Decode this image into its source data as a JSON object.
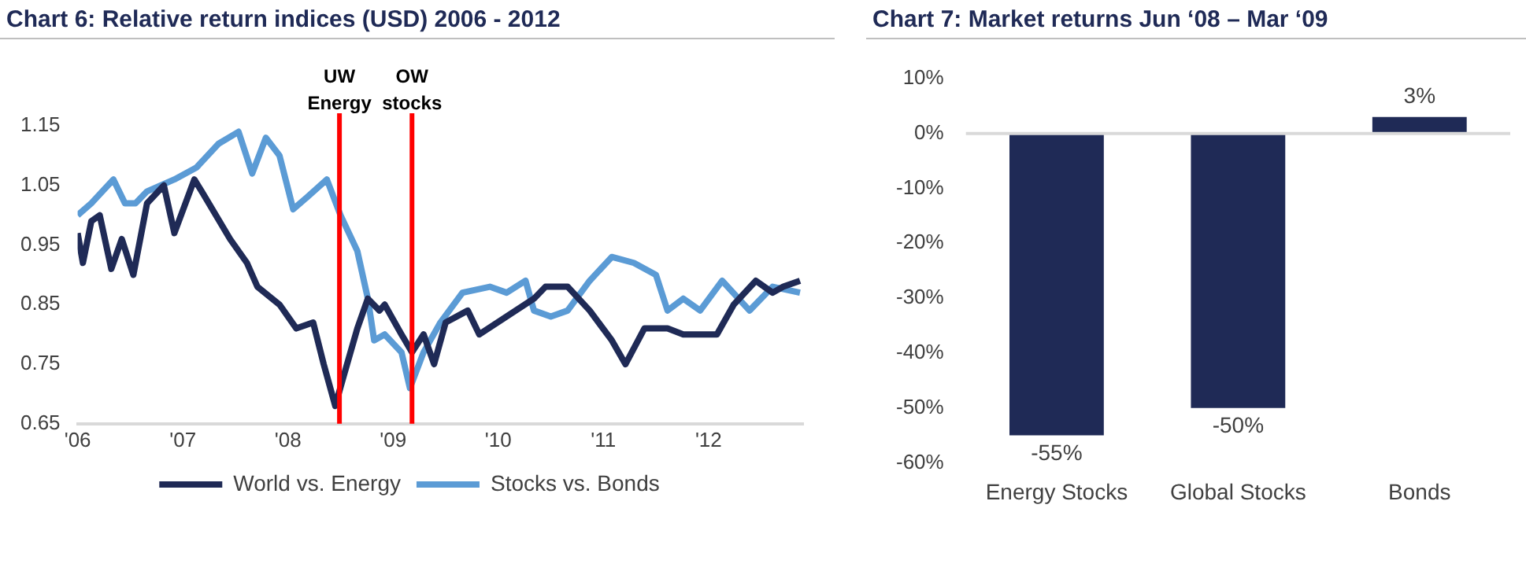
{
  "chart_data": [
    {
      "type": "line",
      "title": "Chart 6: Relative return indices (USD) 2006 - 2012",
      "legend": "bottom",
      "grid": false,
      "marker": "none",
      "line_style": "solid",
      "xlim": [
        2006,
        2012.9
      ],
      "xticks": [
        {
          "value": 2006,
          "label": "'06"
        },
        {
          "value": 2007,
          "label": "'07"
        },
        {
          "value": 2008,
          "label": "'08"
        },
        {
          "value": 2009,
          "label": "'09"
        },
        {
          "value": 2010,
          "label": "'10"
        },
        {
          "value": 2011,
          "label": "'11"
        },
        {
          "value": 2012,
          "label": "'12"
        }
      ],
      "ylim": [
        0.65,
        1.15
      ],
      "yticks": [
        0.65,
        0.75,
        0.85,
        0.95,
        1.05,
        1.15
      ],
      "ref_lines": [
        {
          "axis": "x",
          "value": 2008.49,
          "label": "UW Energy",
          "color": "#ff0000"
        },
        {
          "axis": "x",
          "value": 2009.18,
          "label": "OW stocks",
          "color": "#ff0000"
        }
      ],
      "series": [
        {
          "name": "World vs. Energy",
          "color": "#1f2a56",
          "x": [
            2006.0,
            2006.05,
            2006.13,
            2006.21,
            2006.32,
            2006.42,
            2006.53,
            2006.66,
            2006.82,
            2006.92,
            2007.11,
            2007.18,
            2007.45,
            2007.61,
            2007.71,
            2007.92,
            2008.08,
            2008.24,
            2008.34,
            2008.45,
            2008.53,
            2008.66,
            2008.76,
            2008.87,
            2008.92,
            2009.08,
            2009.18,
            2009.29,
            2009.39,
            2009.5,
            2009.71,
            2009.82,
            2010.08,
            2010.34,
            2010.45,
            2010.66,
            2010.87,
            2011.08,
            2011.21,
            2011.39,
            2011.61,
            2011.76,
            2011.92,
            2012.08,
            2012.24,
            2012.45,
            2012.61,
            2012.71,
            2012.87
          ],
          "values": [
            0.97,
            0.92,
            0.99,
            1.0,
            0.91,
            0.96,
            0.9,
            1.02,
            1.05,
            0.97,
            1.06,
            1.04,
            0.96,
            0.92,
            0.88,
            0.85,
            0.81,
            0.82,
            0.75,
            0.68,
            0.73,
            0.81,
            0.86,
            0.84,
            0.85,
            0.8,
            0.77,
            0.8,
            0.75,
            0.82,
            0.84,
            0.8,
            0.83,
            0.86,
            0.88,
            0.88,
            0.84,
            0.79,
            0.75,
            0.81,
            0.81,
            0.8,
            0.8,
            0.8,
            0.85,
            0.89,
            0.87,
            0.88,
            0.89
          ]
        },
        {
          "name": "Stocks vs. Bonds",
          "color": "#5b9bd5",
          "x": [
            2006.0,
            2006.13,
            2006.34,
            2006.45,
            2006.55,
            2006.66,
            2006.92,
            2007.13,
            2007.34,
            2007.53,
            2007.66,
            2007.79,
            2007.92,
            2008.05,
            2008.18,
            2008.37,
            2008.5,
            2008.66,
            2008.76,
            2008.82,
            2008.92,
            2009.08,
            2009.16,
            2009.29,
            2009.45,
            2009.66,
            2009.92,
            2010.08,
            2010.26,
            2010.34,
            2010.5,
            2010.66,
            2010.87,
            2011.08,
            2011.29,
            2011.5,
            2011.61,
            2011.76,
            2011.92,
            2012.13,
            2012.39,
            2012.61,
            2012.87
          ],
          "values": [
            1.0,
            1.02,
            1.06,
            1.02,
            1.02,
            1.04,
            1.06,
            1.08,
            1.12,
            1.14,
            1.07,
            1.13,
            1.1,
            1.01,
            1.03,
            1.06,
            1.0,
            0.94,
            0.86,
            0.79,
            0.8,
            0.77,
            0.71,
            0.77,
            0.82,
            0.87,
            0.88,
            0.87,
            0.89,
            0.84,
            0.83,
            0.84,
            0.89,
            0.93,
            0.92,
            0.9,
            0.84,
            0.86,
            0.84,
            0.89,
            0.84,
            0.88,
            0.87
          ]
        }
      ]
    },
    {
      "type": "bar",
      "title": "Chart 7: Market returns Jun ‘08 – Mar ‘09",
      "legend": false,
      "grid": false,
      "categories": [
        "Energy Stocks",
        "Global Stocks",
        "Bonds"
      ],
      "ylim": [
        -60,
        10
      ],
      "yticks": [
        {
          "value": -60,
          "label": "-60%"
        },
        {
          "value": -50,
          "label": "-50%"
        },
        {
          "value": -40,
          "label": "-40%"
        },
        {
          "value": -30,
          "label": "-30%"
        },
        {
          "value": -20,
          "label": "-20%"
        },
        {
          "value": -10,
          "label": "-10%"
        },
        {
          "value": 0,
          "label": "0%"
        },
        {
          "value": 10,
          "label": "10%"
        }
      ],
      "ref_lines": [
        {
          "axis": "y",
          "value": 0,
          "color": "#d9d9d9"
        }
      ],
      "series": [
        {
          "color": "#1f2a56",
          "values": [
            -55,
            -50,
            3
          ],
          "value_labels": [
            "-55%",
            "-50%",
            "3%"
          ]
        }
      ]
    }
  ]
}
